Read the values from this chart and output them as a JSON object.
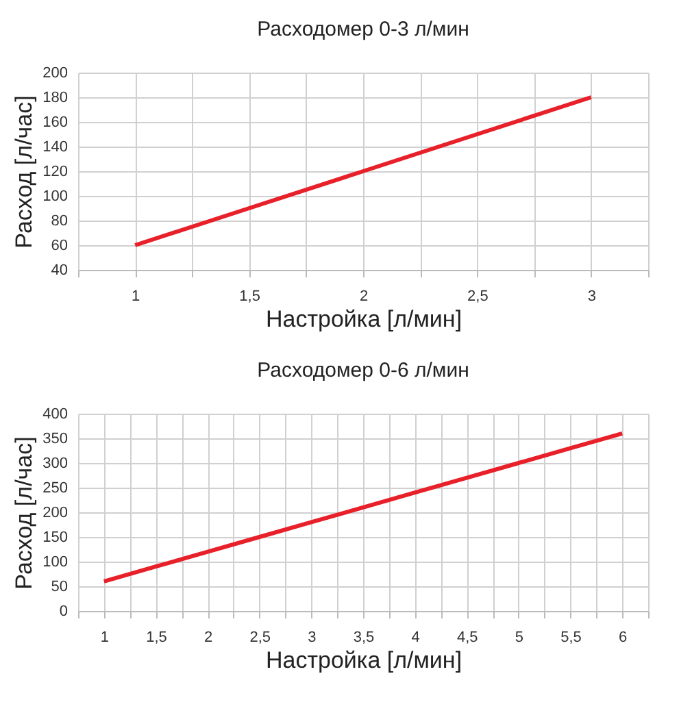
{
  "chart_data": [
    {
      "type": "line",
      "title": "Расходомер 0-3 л/мин",
      "xlabel": "Настройка [л/мин]",
      "ylabel": "Расход [л/час]",
      "x": [
        1,
        1.5,
        2,
        2.5,
        3
      ],
      "series": [
        {
          "color": "#e8202a",
          "values": [
            60,
            90,
            120,
            150,
            180
          ]
        }
      ],
      "xlim": [
        0.75,
        3.25
      ],
      "xticks": [
        {
          "value": 0.75,
          "label": null
        },
        {
          "value": 1,
          "label": "1"
        },
        {
          "value": 1.25,
          "label": null
        },
        {
          "value": 1.5,
          "label": "1,5"
        },
        {
          "value": 1.75,
          "label": null
        },
        {
          "value": 2,
          "label": "2"
        },
        {
          "value": 2.25,
          "label": null
        },
        {
          "value": 2.5,
          "label": "2,5"
        },
        {
          "value": 2.75,
          "label": null
        },
        {
          "value": 3,
          "label": "3"
        },
        {
          "value": 3.25,
          "label": null
        }
      ],
      "ylim": [
        40,
        200
      ],
      "yticks": [
        40,
        60,
        80,
        100,
        120,
        140,
        160,
        180,
        200
      ],
      "grid": true,
      "legend": false,
      "marker": "none",
      "line_style": "solid"
    },
    {
      "type": "line",
      "title": "Расходомер 0-6 л/мин",
      "xlabel": "Настройка [л/мин]",
      "ylabel": "Расход [л/час]",
      "x": [
        1,
        1.5,
        2,
        2.5,
        3,
        3.5,
        4,
        4.5,
        5,
        5.5,
        6
      ],
      "series": [
        {
          "color": "#e8202a",
          "values": [
            60,
            90,
            120,
            150,
            180,
            210,
            240,
            270,
            300,
            330,
            360
          ]
        }
      ],
      "xlim": [
        0.75,
        6.25
      ],
      "xticks": [
        {
          "value": 0.75,
          "label": null
        },
        {
          "value": 1,
          "label": "1"
        },
        {
          "value": 1.25,
          "label": null
        },
        {
          "value": 1.5,
          "label": "1,5"
        },
        {
          "value": 1.75,
          "label": null
        },
        {
          "value": 2,
          "label": "2"
        },
        {
          "value": 2.25,
          "label": null
        },
        {
          "value": 2.5,
          "label": "2,5"
        },
        {
          "value": 2.75,
          "label": null
        },
        {
          "value": 3,
          "label": "3"
        },
        {
          "value": 3.25,
          "label": null
        },
        {
          "value": 3.5,
          "label": "3,5"
        },
        {
          "value": 3.75,
          "label": null
        },
        {
          "value": 4,
          "label": "4"
        },
        {
          "value": 4.25,
          "label": null
        },
        {
          "value": 4.5,
          "label": "4,5"
        },
        {
          "value": 4.75,
          "label": null
        },
        {
          "value": 5,
          "label": "5"
        },
        {
          "value": 5.25,
          "label": null
        },
        {
          "value": 5.5,
          "label": "5,5"
        },
        {
          "value": 5.75,
          "label": null
        },
        {
          "value": 6,
          "label": "6"
        },
        {
          "value": 6.25,
          "label": null
        }
      ],
      "ylim": [
        0,
        400
      ],
      "yticks": [
        0,
        50,
        100,
        150,
        200,
        250,
        300,
        350,
        400
      ],
      "grid": true,
      "legend": false,
      "marker": "none",
      "line_style": "solid"
    }
  ]
}
